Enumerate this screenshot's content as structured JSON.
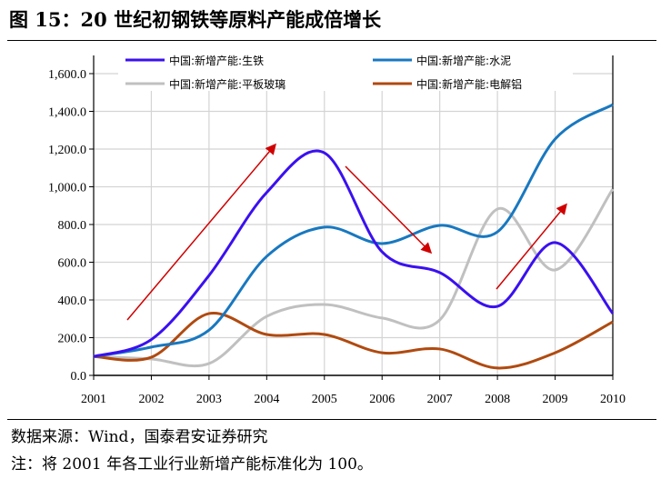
{
  "title": "图 15：20 世纪初钢铁等原料产能成倍增长",
  "source": "数据来源：Wind，国泰君安证券研究",
  "note": "注：将 2001 年各工业行业新增产能标准化为 100。",
  "chart_data": {
    "type": "line",
    "title": "",
    "xlabel": "",
    "ylabel": "",
    "x": [
      "2001",
      "2002",
      "2003",
      "2004",
      "2005",
      "2006",
      "2007",
      "2008",
      "2009",
      "2010"
    ],
    "ylim": [
      0,
      1600
    ],
    "yticks": [
      "0.0",
      "200.0",
      "400.0",
      "600.0",
      "800.0",
      "1,000.0",
      "1,200.0",
      "1,400.0",
      "1,600.0"
    ],
    "grid": true,
    "legend": "top",
    "smooth": true,
    "series": [
      {
        "name": "中国:新增产能:生铁",
        "color": "#3A10F0",
        "values": [
          100,
          190,
          530,
          970,
          1180,
          655,
          545,
          366,
          704,
          328
        ]
      },
      {
        "name": "中国:新增产能:水泥",
        "color": "#1878C0",
        "values": [
          100,
          150,
          240,
          631,
          786,
          699,
          795,
          761,
          1253,
          1436
        ]
      },
      {
        "name": "中国:新增产能:平板玻璃",
        "color": "#C0C0C0",
        "values": [
          100,
          87,
          63,
          313,
          376,
          304,
          294,
          882,
          559,
          988
        ]
      },
      {
        "name": "中国:新增产能:电解铝",
        "color": "#B04A10",
        "values": [
          100,
          96,
          328,
          217,
          217,
          120,
          140,
          39,
          120,
          284
        ]
      }
    ],
    "annotations_color": "#D00000"
  }
}
